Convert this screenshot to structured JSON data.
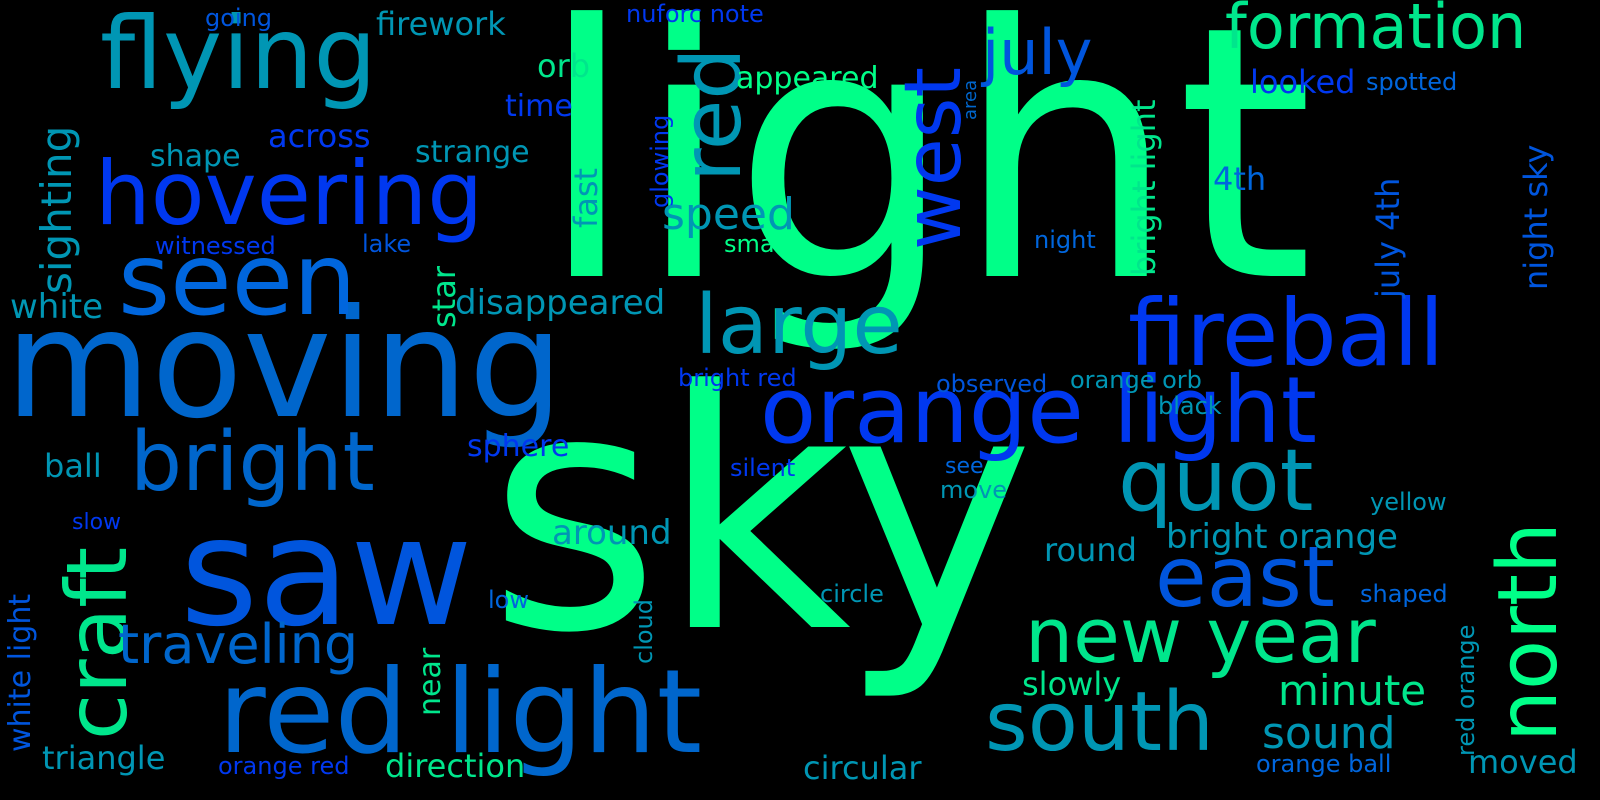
{
  "palette": {
    "background": "#000000",
    "green": "#00ff88",
    "mint": "#00e68c",
    "teal": "#0096b4",
    "blue": "#0066dd",
    "royal": "#0038f0",
    "navy": "#1a2ef5"
  },
  "words": {
    "light": "light",
    "sky": "sky",
    "saw": "saw",
    "moving": "moving",
    "flying": "flying",
    "seen": "seen",
    "hovering": "hovering",
    "red": "red",
    "west": "west",
    "july": "july",
    "formation": "formation",
    "fireball": "fireball",
    "large": "large",
    "orange_light": "orange light",
    "bright": "bright",
    "craft": "craft",
    "quot": "quot",
    "east": "east",
    "north": "north",
    "new_year": "new year",
    "south": "south",
    "red_light": "red light",
    "traveling": "traveling",
    "sighting": "sighting",
    "firework": "firework",
    "going": "going",
    "nuforc_note": "nuforc note",
    "orb": "orb",
    "time": "time",
    "appeared": "appeared",
    "looked": "looked",
    "spotted": "spotted",
    "across": "across",
    "shape": "shape",
    "strange": "strange",
    "speed": "speed",
    "fast": "fast",
    "glowing": "glowing",
    "area": "area",
    "bright_light": "bright light",
    "night_sky": "night sky",
    "fourth": "4th",
    "witnessed": "witnessed",
    "lake": "lake",
    "small": "small",
    "night": "night",
    "july_4th": "july 4th",
    "white": "white",
    "star": "star",
    "disappeared": "disappeared",
    "bright_red": "bright red",
    "observed": "observed",
    "orange_orb": "orange orb",
    "black": "black",
    "sphere": "sphere",
    "ball": "ball",
    "silent": "silent",
    "see": "see",
    "move": "move",
    "yellow": "yellow",
    "white_light": "white light",
    "slow": "slow",
    "around": "around",
    "bright_orange": "bright orange",
    "round": "round",
    "low": "low",
    "cloud": "cloud",
    "circle": "circle",
    "shaped": "shaped",
    "near": "near",
    "slowly": "slowly",
    "minute": "minute",
    "red_orange": "red orange",
    "sound": "sound",
    "triangle": "triangle",
    "orange_red": "orange red",
    "direction": "direction",
    "circular": "circular",
    "orange_ball": "orange ball",
    "moved": "moved"
  }
}
